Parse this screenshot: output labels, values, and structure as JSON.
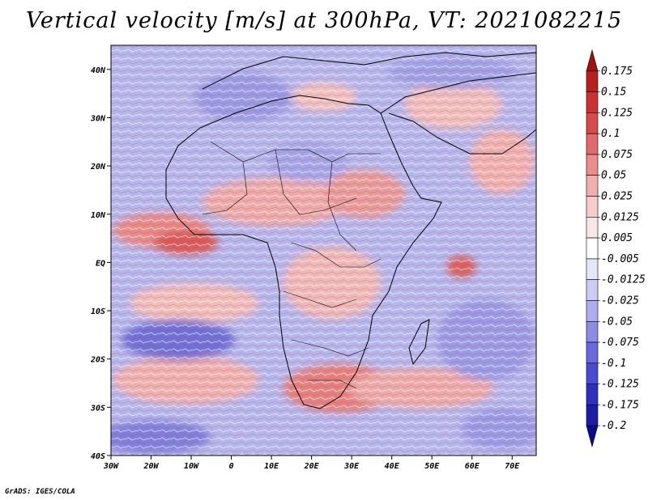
{
  "title": "Vertical velocity [m/s] at 300hPa, VT: 2021082215",
  "credit": "GrADS: IGES/COLA",
  "map": {
    "lon_range": [
      -30,
      76
    ],
    "lat_range": [
      -40,
      45
    ],
    "x_ticks": [
      "30W",
      "20W",
      "10W",
      "0",
      "10E",
      "20E",
      "30E",
      "40E",
      "50E",
      "60E",
      "70E"
    ],
    "x_tick_lons": [
      -30,
      -20,
      -10,
      0,
      10,
      20,
      30,
      40,
      50,
      60,
      70
    ],
    "y_ticks": [
      "40N",
      "30N",
      "20N",
      "10N",
      "EQ",
      "10S",
      "20S",
      "30S",
      "40S"
    ],
    "y_tick_lats": [
      40,
      30,
      20,
      10,
      0,
      -10,
      -20,
      -30,
      -40
    ]
  },
  "colorbar": {
    "labels": [
      "0.175",
      "0.15",
      "0.125",
      "0.1",
      "0.075",
      "0.05",
      "0.025",
      "0.0125",
      "0.005",
      "-0.005",
      "-0.0125",
      "-0.025",
      "-0.05",
      "-0.075",
      "-0.1",
      "-0.125",
      "-0.175",
      "-0.2"
    ],
    "colors": [
      "#a01010",
      "#b82020",
      "#cc3030",
      "#d94a4a",
      "#e36a6a",
      "#ec8c8c",
      "#f3aeae",
      "#f8cccc",
      "#fbe6e6",
      "#ffffff",
      "#e6e6fb",
      "#ccccf5",
      "#aeaeee",
      "#8c8ce6",
      "#6a6ade",
      "#4a4ad2",
      "#3030c0",
      "#1c1ca8",
      "#0a0a8c"
    ]
  }
}
